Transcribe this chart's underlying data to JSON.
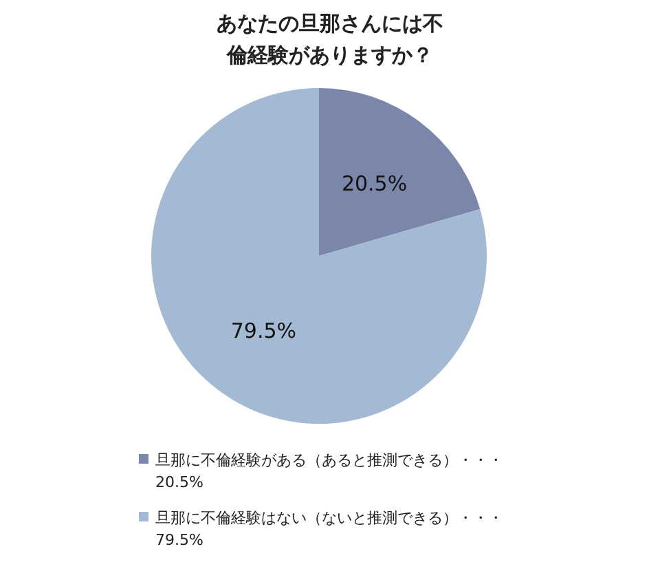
{
  "chart_data": {
    "type": "pie",
    "title": "あなたの旦那さんには不倫経験がありますか？",
    "categories": [
      "旦那に不倫経験がある（あると推測できる）・・・",
      "旦那に不倫経験はない（ないと推測できる）・・・"
    ],
    "values": [
      20.5,
      79.5
    ],
    "colors": [
      "#7b86ab",
      "#a4bad4"
    ],
    "value_labels": [
      "20.5%",
      "79.5%"
    ],
    "legend": "bottom"
  }
}
